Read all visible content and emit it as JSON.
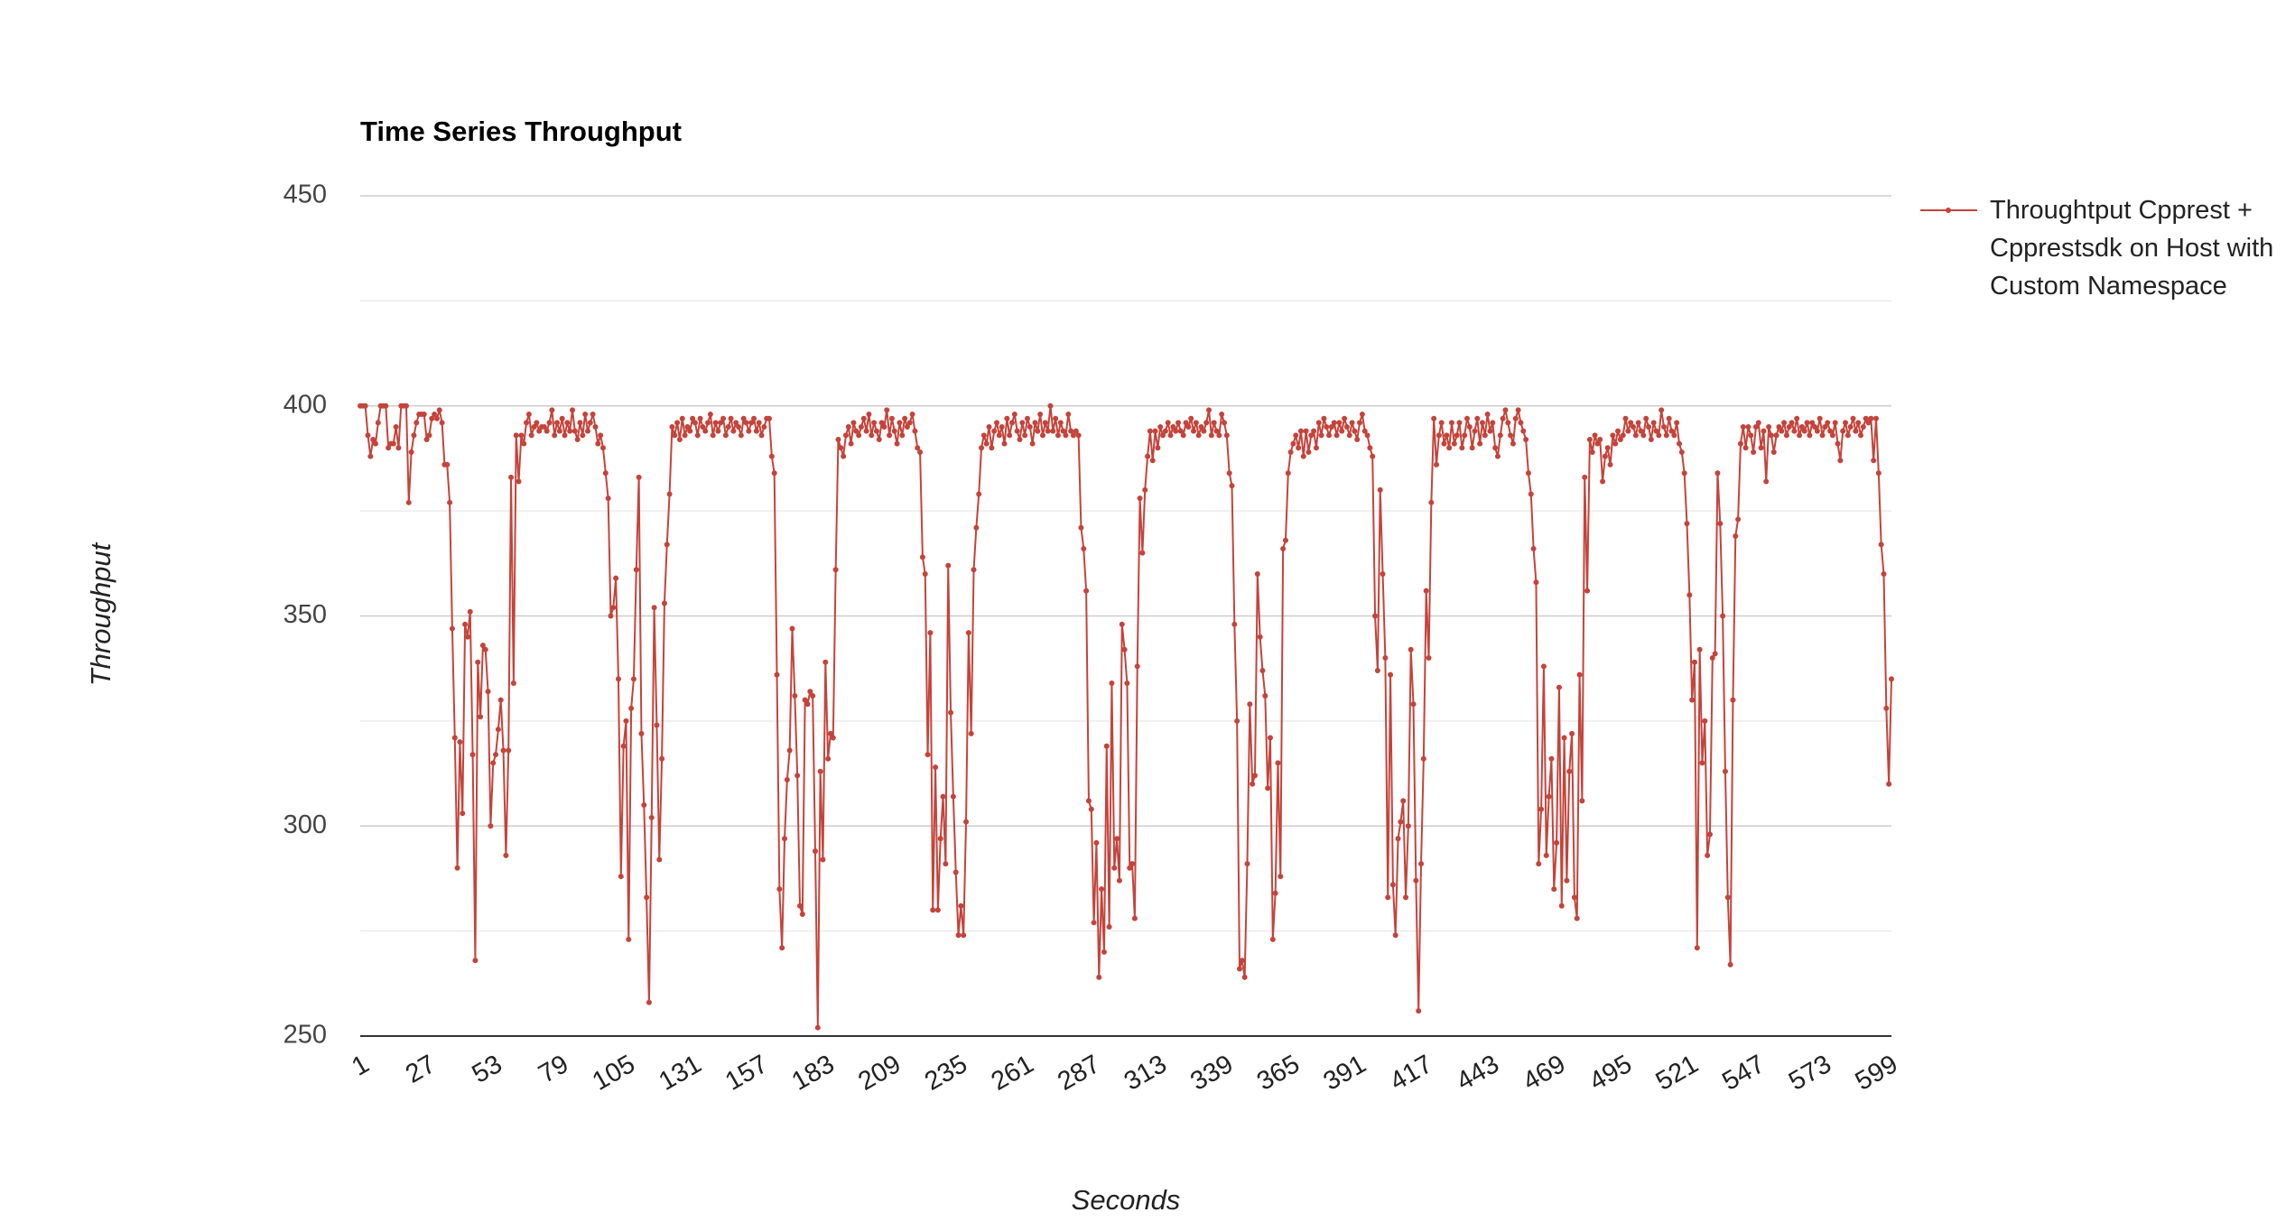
{
  "chart_data": {
    "type": "line",
    "title": "Time Series Throughput",
    "x_label": "Seconds",
    "y_label": "Throughput",
    "series": [
      {
        "name": "Throughtput Cpprest + Cpprestsdk on Host with Custom Namespace",
        "color": "#c5433a",
        "values": [
          400,
          400,
          400,
          393,
          388,
          392,
          391,
          396,
          400,
          400,
          400,
          390,
          391,
          391,
          395,
          390,
          400,
          400,
          400,
          377,
          389,
          393,
          396,
          398,
          398,
          398,
          392,
          393,
          397,
          398,
          397,
          399,
          396,
          386,
          386,
          377,
          347,
          321,
          290,
          320,
          303,
          348,
          345,
          351,
          317,
          268,
          339,
          326,
          343,
          342,
          332,
          300,
          315,
          317,
          323,
          330,
          318,
          293,
          318,
          383,
          334,
          393,
          382,
          393,
          391,
          396,
          398,
          393,
          395,
          396,
          394,
          395,
          395,
          394,
          396,
          399,
          393,
          396,
          394,
          397,
          393,
          396,
          394,
          399,
          394,
          392,
          396,
          393,
          398,
          394,
          396,
          398,
          395,
          391,
          393,
          390,
          384,
          378,
          350,
          352,
          359,
          335,
          288,
          319,
          325,
          273,
          328,
          335,
          361,
          383,
          322,
          305,
          283,
          258,
          302,
          352,
          324,
          292,
          316,
          353,
          367,
          379,
          395,
          393,
          396,
          392,
          397,
          393,
          395,
          394,
          397,
          396,
          393,
          397,
          395,
          394,
          396,
          398,
          393,
          396,
          394,
          396,
          397,
          393,
          395,
          397,
          394,
          396,
          395,
          393,
          397,
          396,
          394,
          396,
          397,
          394,
          396,
          393,
          395,
          397,
          397,
          388,
          384,
          336,
          285,
          271,
          297,
          311,
          318,
          347,
          331,
          312,
          281,
          279,
          330,
          329,
          332,
          331,
          294,
          252,
          313,
          292,
          339,
          316,
          322,
          321,
          361,
          392,
          390,
          388,
          393,
          395,
          391,
          396,
          394,
          393,
          395,
          397,
          394,
          398,
          393,
          396,
          394,
          392,
          396,
          395,
          399,
          393,
          397,
          394,
          391,
          396,
          393,
          397,
          395,
          396,
          398,
          394,
          390,
          389,
          364,
          360,
          317,
          346,
          280,
          314,
          280,
          297,
          307,
          291,
          362,
          327,
          307,
          289,
          274,
          281,
          274,
          301,
          346,
          322,
          361,
          371,
          379,
          390,
          393,
          391,
          395,
          390,
          394,
          396,
          393,
          395,
          391,
          397,
          393,
          396,
          398,
          394,
          392,
          396,
          393,
          397,
          395,
          391,
          396,
          394,
          398,
          393,
          396,
          394,
          400,
          394,
          397,
          393,
          396,
          394,
          393,
          398,
          394,
          393,
          394,
          393,
          371,
          366,
          356,
          306,
          304,
          277,
          296,
          264,
          285,
          270,
          319,
          276,
          334,
          290,
          297,
          287,
          348,
          342,
          334,
          290,
          291,
          278,
          338,
          378,
          365,
          380,
          388,
          394,
          387,
          394,
          390,
          395,
          393,
          394,
          396,
          393,
          395,
          394,
          396,
          394,
          393,
          396,
          395,
          397,
          394,
          396,
          393,
          395,
          394,
          396,
          399,
          393,
          396,
          394,
          393,
          398,
          396,
          393,
          384,
          381,
          348,
          325,
          266,
          268,
          264,
          291,
          329,
          310,
          312,
          360,
          345,
          337,
          331,
          309,
          321,
          273,
          284,
          315,
          288,
          366,
          368,
          384,
          389,
          391,
          393,
          390,
          394,
          388,
          394,
          389,
          393,
          394,
          390,
          396,
          393,
          397,
          395,
          393,
          395,
          396,
          393,
          396,
          394,
          397,
          395,
          393,
          396,
          394,
          392,
          396,
          398,
          394,
          393,
          390,
          388,
          350,
          337,
          380,
          360,
          340,
          283,
          336,
          286,
          274,
          297,
          301,
          306,
          283,
          300,
          342,
          329,
          287,
          256,
          291,
          316,
          356,
          340,
          377,
          397,
          386,
          393,
          396,
          391,
          393,
          390,
          396,
          391,
          393,
          396,
          390,
          393,
          397,
          395,
          390,
          394,
          397,
          391,
          396,
          393,
          398,
          394,
          396,
          390,
          388,
          393,
          397,
          399,
          396,
          393,
          391,
          397,
          399,
          396,
          394,
          392,
          384,
          379,
          366,
          358,
          291,
          304,
          338,
          293,
          307,
          316,
          285,
          296,
          333,
          281,
          321,
          287,
          313,
          322,
          283,
          278,
          336,
          306,
          383,
          356,
          392,
          389,
          393,
          391,
          392,
          382,
          388,
          390,
          386,
          393,
          391,
          394,
          392,
          393,
          397,
          394,
          396,
          395,
          393,
          396,
          394,
          393,
          397,
          395,
          392,
          396,
          394,
          393,
          399,
          395,
          393,
          397,
          394,
          393,
          396,
          391,
          389,
          384,
          372,
          355,
          330,
          339,
          271,
          342,
          315,
          325,
          293,
          298,
          340,
          341,
          384,
          372,
          350,
          313,
          283,
          267,
          330,
          369,
          373,
          391,
          395,
          390,
          395,
          393,
          389,
          395,
          396,
          390,
          394,
          382,
          395,
          393,
          389,
          393,
          395,
          394,
          396,
          393,
          395,
          396,
          394,
          397,
          393,
          395,
          394,
          396,
          393,
          396,
          395,
          394,
          397,
          393,
          395,
          396,
          394,
          393,
          396,
          391,
          387,
          394,
          396,
          393,
          395,
          397,
          394,
          396,
          393,
          395,
          397,
          396,
          397,
          387,
          397,
          384,
          367,
          360,
          328,
          310,
          335
        ]
      }
    ],
    "x": [
      1,
      2,
      3,
      4,
      5,
      6,
      7,
      8,
      9,
      10,
      11,
      12,
      13,
      14,
      15,
      16,
      17,
      18,
      19,
      20,
      21,
      22,
      23,
      24,
      25,
      26,
      27,
      28,
      29,
      30,
      31,
      32,
      33,
      34,
      35,
      36,
      37,
      38,
      39,
      40,
      41,
      42,
      43,
      44,
      45,
      46,
      47,
      48,
      49,
      50,
      51,
      52,
      53,
      54,
      55,
      56,
      57,
      58,
      59,
      60,
      61,
      62,
      63,
      64,
      65,
      66,
      67,
      68,
      69,
      70,
      71,
      72,
      73,
      74,
      75,
      76,
      77,
      78,
      79,
      80,
      81,
      82,
      83,
      84,
      85,
      86,
      87,
      88,
      89,
      90,
      91,
      92,
      93,
      94,
      95,
      96,
      97,
      98,
      99,
      100,
      101,
      102,
      103,
      104,
      105,
      106,
      107,
      108,
      109,
      110,
      111,
      112,
      113,
      114,
      115,
      116,
      117,
      118,
      119,
      120,
      121,
      122,
      123,
      124,
      125,
      126,
      127,
      128,
      129,
      130,
      131,
      132,
      133,
      134,
      135,
      136,
      137,
      138,
      139,
      140,
      141,
      142,
      143,
      144,
      145,
      146,
      147,
      148,
      149,
      150,
      151,
      152,
      153,
      154,
      155,
      156,
      157,
      158,
      159,
      160,
      161,
      162,
      163,
      164,
      165,
      166,
      167,
      168,
      169,
      170,
      171,
      172,
      173,
      174,
      175,
      176,
      177,
      178,
      179,
      180,
      181,
      182,
      183,
      184,
      185,
      186,
      187,
      188,
      189,
      190,
      191,
      192,
      193,
      194,
      195,
      196,
      197,
      198,
      199,
      200,
      201,
      202,
      203,
      204,
      205,
      206,
      207,
      208,
      209,
      210,
      211,
      212,
      213,
      214,
      215,
      216,
      217,
      218,
      219,
      220,
      221,
      222,
      223,
      224,
      225,
      226,
      227,
      228,
      229,
      230,
      231,
      232,
      233,
      234,
      235,
      236,
      237,
      238,
      239,
      240,
      241,
      242,
      243,
      244,
      245,
      246,
      247,
      248,
      249,
      250,
      251,
      252,
      253,
      254,
      255,
      256,
      257,
      258,
      259,
      260,
      261,
      262,
      263,
      264,
      265,
      266,
      267,
      268,
      269,
      270,
      271,
      272,
      273,
      274,
      275,
      276,
      277,
      278,
      279,
      280,
      281,
      282,
      283,
      284,
      285,
      286,
      287,
      288,
      289,
      290,
      291,
      292,
      293,
      294,
      295,
      296,
      297,
      298,
      299,
      300,
      301,
      302,
      303,
      304,
      305,
      306,
      307,
      308,
      309,
      310,
      311,
      312,
      313,
      314,
      315,
      316,
      317,
      318,
      319,
      320,
      321,
      322,
      323,
      324,
      325,
      326,
      327,
      328,
      329,
      330,
      331,
      332,
      333,
      334,
      335,
      336,
      337,
      338,
      339,
      340,
      341,
      342,
      343,
      344,
      345,
      346,
      347,
      348,
      349,
      350,
      351,
      352,
      353,
      354,
      355,
      356,
      357,
      358,
      359,
      360,
      361,
      362,
      363,
      364,
      365,
      366,
      367,
      368,
      369,
      370,
      371,
      372,
      373,
      374,
      375,
      376,
      377,
      378,
      379,
      380,
      381,
      382,
      383,
      384,
      385,
      386,
      387,
      388,
      389,
      390,
      391,
      392,
      393,
      394,
      395,
      396,
      397,
      398,
      399,
      400,
      401,
      402,
      403,
      404,
      405,
      406,
      407,
      408,
      409,
      410,
      411,
      412,
      413,
      414,
      415,
      416,
      417,
      418,
      419,
      420,
      421,
      422,
      423,
      424,
      425,
      426,
      427,
      428,
      429,
      430,
      431,
      432,
      433,
      434,
      435,
      436,
      437,
      438,
      439,
      440,
      441,
      442,
      443,
      444,
      445,
      446,
      447,
      448,
      449,
      450,
      451,
      452,
      453,
      454,
      455,
      456,
      457,
      458,
      459,
      460,
      461,
      462,
      463,
      464,
      465,
      466,
      467,
      468,
      469,
      470,
      471,
      472,
      473,
      474,
      475,
      476,
      477,
      478,
      479,
      480,
      481,
      482,
      483,
      484,
      485,
      486,
      487,
      488,
      489,
      490,
      491,
      492,
      493,
      494,
      495,
      496,
      497,
      498,
      499,
      500,
      501,
      502,
      503,
      504,
      505,
      506,
      507,
      508,
      509,
      510,
      511,
      512,
      513,
      514,
      515,
      516,
      517,
      518,
      519,
      520,
      521,
      522,
      523,
      524,
      525,
      526,
      527,
      528,
      529,
      530,
      531,
      532,
      533,
      534,
      535,
      536,
      537,
      538,
      539,
      540,
      541,
      542,
      543,
      544,
      545,
      546,
      547,
      548,
      549,
      550,
      551,
      552,
      553,
      554,
      555,
      556,
      557,
      558,
      559,
      560,
      561,
      562,
      563,
      564,
      565,
      566,
      567,
      568,
      569,
      570,
      571,
      572,
      573,
      574,
      575,
      576,
      577,
      578,
      579,
      580,
      581,
      582,
      583,
      584,
      585,
      586,
      587,
      588,
      589,
      590,
      591,
      592,
      593,
      594,
      595,
      596,
      597,
      598,
      599,
      600
    ],
    "xlim": [
      1,
      600
    ],
    "xticks": [
      1,
      27,
      53,
      79,
      105,
      131,
      157,
      183,
      209,
      235,
      261,
      287,
      313,
      339,
      365,
      391,
      417,
      443,
      469,
      495,
      521,
      547,
      573,
      599
    ],
    "ylim": [
      250,
      450
    ],
    "yticks": [
      250,
      300,
      350,
      400,
      450
    ],
    "minor_yticks": [
      275,
      325,
      375,
      425
    ],
    "grid": true,
    "legend": "right"
  }
}
